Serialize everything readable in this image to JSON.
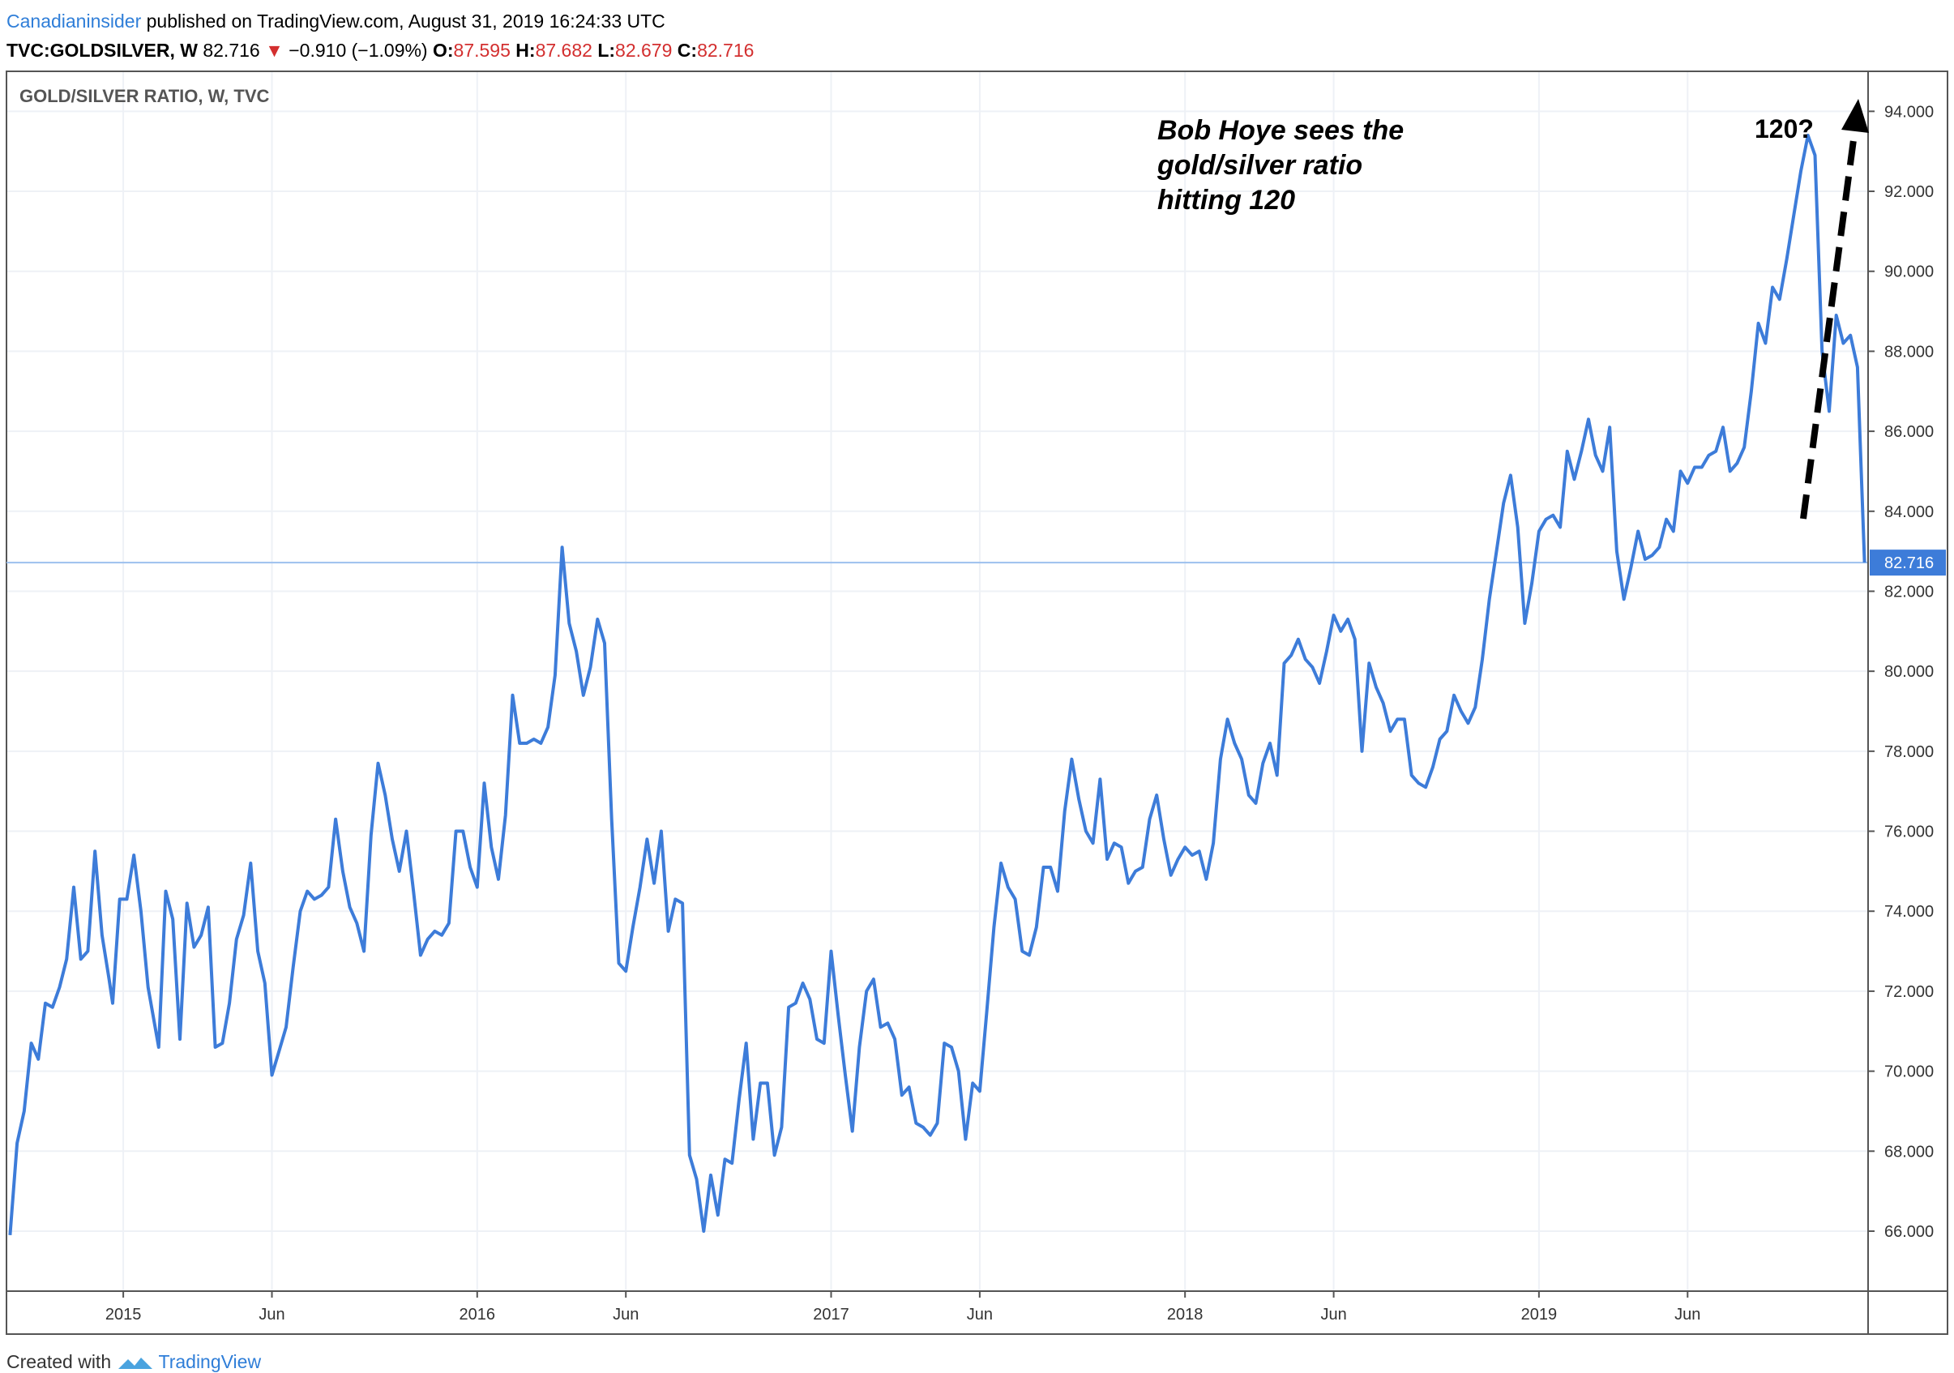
{
  "header": {
    "author": "Canadianinsider",
    "published": " published on TradingView.com, August 31, 2019 16:24:33 UTC",
    "symbol": "TVC:GOLDSILVER, W",
    "last": "82.716",
    "change": "−0.910 (−1.09%)",
    "o_label": "O:",
    "o_val": "87.595",
    "h_label": "H:",
    "h_val": "87.682",
    "l_label": "L:",
    "l_val": "82.679",
    "c_label": "C:",
    "c_val": "82.716",
    "down_arrow": "▼"
  },
  "footer": {
    "created": "Created with ",
    "brand": "TradingView"
  },
  "colors": {
    "line": "#3d7cd9",
    "price_tag": "#3d7cd9",
    "grid": "#eef1f6",
    "arrow": "#000000"
  },
  "chart_data": {
    "type": "line",
    "title": "GOLD/SILVER RATIO, W, TVC",
    "last_price": 82.716,
    "ylim": [
      64.5,
      95.0
    ],
    "yticks": [
      66,
      68,
      70,
      72,
      74,
      76,
      78,
      80,
      82,
      84,
      86,
      88,
      90,
      92,
      94
    ],
    "ytick_labels": [
      "66.000",
      "68.000",
      "70.000",
      "72.000",
      "74.000",
      "76.000",
      "78.000",
      "80.000",
      "82.000",
      "84.000",
      "86.000",
      "88.000",
      "90.000",
      "92.000",
      "94.000"
    ],
    "xticks": [
      {
        "label": "2015",
        "x": 2015.0
      },
      {
        "label": "Jun",
        "x": 2015.42
      },
      {
        "label": "2016",
        "x": 2016.0
      },
      {
        "label": "Jun",
        "x": 2016.42
      },
      {
        "label": "2017",
        "x": 2017.0
      },
      {
        "label": "Jun",
        "x": 2017.42
      },
      {
        "label": "2018",
        "x": 2018.0
      },
      {
        "label": "Jun",
        "x": 2018.42
      },
      {
        "label": "2019",
        "x": 2019.0
      },
      {
        "label": "Jun",
        "x": 2019.42
      }
    ],
    "xlim": [
      2014.67,
      2019.93
    ],
    "series": [
      {
        "values": [
          [
            2014.68,
            65.9
          ],
          [
            2014.7,
            68.2
          ],
          [
            2014.72,
            69.0
          ],
          [
            2014.74,
            70.7
          ],
          [
            2014.76,
            70.3
          ],
          [
            2014.78,
            71.7
          ],
          [
            2014.8,
            71.6
          ],
          [
            2014.82,
            72.1
          ],
          [
            2014.84,
            72.8
          ],
          [
            2014.86,
            74.6
          ],
          [
            2014.88,
            72.8
          ],
          [
            2014.9,
            73.0
          ],
          [
            2014.92,
            75.5
          ],
          [
            2014.94,
            73.4
          ],
          [
            2014.96,
            72.3
          ],
          [
            2014.97,
            71.7
          ],
          [
            2014.99,
            74.3
          ],
          [
            2015.01,
            74.3
          ],
          [
            2015.03,
            75.4
          ],
          [
            2015.05,
            74.0
          ],
          [
            2015.07,
            72.1
          ],
          [
            2015.1,
            70.6
          ],
          [
            2015.12,
            74.5
          ],
          [
            2015.14,
            73.8
          ],
          [
            2015.16,
            70.8
          ],
          [
            2015.18,
            74.2
          ],
          [
            2015.2,
            73.1
          ],
          [
            2015.22,
            73.4
          ],
          [
            2015.24,
            74.1
          ],
          [
            2015.26,
            70.6
          ],
          [
            2015.28,
            70.7
          ],
          [
            2015.3,
            71.7
          ],
          [
            2015.32,
            73.3
          ],
          [
            2015.34,
            73.9
          ],
          [
            2015.36,
            75.2
          ],
          [
            2015.38,
            73.0
          ],
          [
            2015.4,
            72.2
          ],
          [
            2015.42,
            69.9
          ],
          [
            2015.44,
            70.5
          ],
          [
            2015.46,
            71.1
          ],
          [
            2015.48,
            72.6
          ],
          [
            2015.5,
            74.0
          ],
          [
            2015.52,
            74.5
          ],
          [
            2015.54,
            74.3
          ],
          [
            2015.56,
            74.4
          ],
          [
            2015.58,
            74.6
          ],
          [
            2015.6,
            76.3
          ],
          [
            2015.62,
            75.0
          ],
          [
            2015.64,
            74.1
          ],
          [
            2015.66,
            73.7
          ],
          [
            2015.68,
            73.0
          ],
          [
            2015.7,
            75.9
          ],
          [
            2015.72,
            77.7
          ],
          [
            2015.74,
            76.9
          ],
          [
            2015.76,
            75.8
          ],
          [
            2015.78,
            75.0
          ],
          [
            2015.8,
            76.0
          ],
          [
            2015.82,
            74.5
          ],
          [
            2015.84,
            72.9
          ],
          [
            2015.86,
            73.3
          ],
          [
            2015.88,
            73.5
          ],
          [
            2015.9,
            73.4
          ],
          [
            2015.92,
            73.7
          ],
          [
            2015.94,
            76.0
          ],
          [
            2015.96,
            76.0
          ],
          [
            2015.98,
            75.1
          ],
          [
            2016.0,
            74.6
          ],
          [
            2016.02,
            77.2
          ],
          [
            2016.04,
            75.6
          ],
          [
            2016.06,
            74.8
          ],
          [
            2016.08,
            76.4
          ],
          [
            2016.1,
            79.4
          ],
          [
            2016.12,
            78.2
          ],
          [
            2016.14,
            78.2
          ],
          [
            2016.16,
            78.3
          ],
          [
            2016.18,
            78.2
          ],
          [
            2016.2,
            78.6
          ],
          [
            2016.22,
            79.9
          ],
          [
            2016.24,
            83.1
          ],
          [
            2016.26,
            81.2
          ],
          [
            2016.28,
            80.5
          ],
          [
            2016.3,
            79.4
          ],
          [
            2016.32,
            80.1
          ],
          [
            2016.34,
            81.3
          ],
          [
            2016.36,
            80.7
          ],
          [
            2016.38,
            76.3
          ],
          [
            2016.4,
            72.7
          ],
          [
            2016.42,
            72.5
          ],
          [
            2016.44,
            73.6
          ],
          [
            2016.46,
            74.6
          ],
          [
            2016.48,
            75.8
          ],
          [
            2016.5,
            74.7
          ],
          [
            2016.52,
            76.0
          ],
          [
            2016.54,
            73.5
          ],
          [
            2016.56,
            74.3
          ],
          [
            2016.58,
            74.2
          ],
          [
            2016.6,
            67.9
          ],
          [
            2016.62,
            67.3
          ],
          [
            2016.64,
            66.0
          ],
          [
            2016.66,
            67.4
          ],
          [
            2016.68,
            66.4
          ],
          [
            2016.7,
            67.8
          ],
          [
            2016.72,
            67.7
          ],
          [
            2016.74,
            69.3
          ],
          [
            2016.76,
            70.7
          ],
          [
            2016.78,
            68.3
          ],
          [
            2016.8,
            69.7
          ],
          [
            2016.82,
            69.7
          ],
          [
            2016.84,
            67.9
          ],
          [
            2016.86,
            68.6
          ],
          [
            2016.88,
            71.6
          ],
          [
            2016.9,
            71.7
          ],
          [
            2016.92,
            72.2
          ],
          [
            2016.94,
            71.8
          ],
          [
            2016.96,
            70.8
          ],
          [
            2016.98,
            70.7
          ],
          [
            2017.0,
            73.0
          ],
          [
            2017.02,
            71.4
          ],
          [
            2017.04,
            69.9
          ],
          [
            2017.06,
            68.5
          ],
          [
            2017.08,
            70.6
          ],
          [
            2017.1,
            72.0
          ],
          [
            2017.12,
            72.3
          ],
          [
            2017.14,
            71.1
          ],
          [
            2017.16,
            71.2
          ],
          [
            2017.18,
            70.8
          ],
          [
            2017.2,
            69.4
          ],
          [
            2017.22,
            69.6
          ],
          [
            2017.24,
            68.7
          ],
          [
            2017.26,
            68.6
          ],
          [
            2017.28,
            68.4
          ],
          [
            2017.3,
            68.7
          ],
          [
            2017.32,
            70.7
          ],
          [
            2017.34,
            70.6
          ],
          [
            2017.36,
            70.0
          ],
          [
            2017.38,
            68.3
          ],
          [
            2017.4,
            69.7
          ],
          [
            2017.42,
            69.5
          ],
          [
            2017.44,
            71.5
          ],
          [
            2017.46,
            73.6
          ],
          [
            2017.48,
            75.2
          ],
          [
            2017.5,
            74.6
          ],
          [
            2017.52,
            74.3
          ],
          [
            2017.54,
            73.0
          ],
          [
            2017.56,
            72.9
          ],
          [
            2017.58,
            73.6
          ],
          [
            2017.6,
            75.1
          ],
          [
            2017.62,
            75.1
          ],
          [
            2017.64,
            74.5
          ],
          [
            2017.66,
            76.5
          ],
          [
            2017.68,
            77.8
          ],
          [
            2017.7,
            76.8
          ],
          [
            2017.72,
            76.0
          ],
          [
            2017.74,
            75.7
          ],
          [
            2017.76,
            77.3
          ],
          [
            2017.78,
            75.3
          ],
          [
            2017.8,
            75.7
          ],
          [
            2017.82,
            75.6
          ],
          [
            2017.84,
            74.7
          ],
          [
            2017.86,
            75.0
          ],
          [
            2017.88,
            75.1
          ],
          [
            2017.9,
            76.3
          ],
          [
            2017.92,
            76.9
          ],
          [
            2017.94,
            75.8
          ],
          [
            2017.96,
            74.9
          ],
          [
            2017.98,
            75.3
          ],
          [
            2018.0,
            75.6
          ],
          [
            2018.02,
            75.4
          ],
          [
            2018.04,
            75.5
          ],
          [
            2018.06,
            74.8
          ],
          [
            2018.08,
            75.7
          ],
          [
            2018.1,
            77.8
          ],
          [
            2018.12,
            78.8
          ],
          [
            2018.14,
            78.2
          ],
          [
            2018.16,
            77.8
          ],
          [
            2018.18,
            76.9
          ],
          [
            2018.2,
            76.7
          ],
          [
            2018.22,
            77.7
          ],
          [
            2018.24,
            78.2
          ],
          [
            2018.26,
            77.4
          ],
          [
            2018.28,
            80.2
          ],
          [
            2018.3,
            80.4
          ],
          [
            2018.32,
            80.8
          ],
          [
            2018.34,
            80.3
          ],
          [
            2018.36,
            80.1
          ],
          [
            2018.38,
            79.7
          ],
          [
            2018.4,
            80.5
          ],
          [
            2018.42,
            81.4
          ],
          [
            2018.44,
            81.0
          ],
          [
            2018.46,
            81.3
          ],
          [
            2018.48,
            80.8
          ],
          [
            2018.5,
            78.0
          ],
          [
            2018.52,
            80.2
          ],
          [
            2018.54,
            79.6
          ],
          [
            2018.56,
            79.2
          ],
          [
            2018.58,
            78.5
          ],
          [
            2018.6,
            78.8
          ],
          [
            2018.62,
            78.8
          ],
          [
            2018.64,
            77.4
          ],
          [
            2018.66,
            77.2
          ],
          [
            2018.68,
            77.1
          ],
          [
            2018.7,
            77.6
          ],
          [
            2018.72,
            78.3
          ],
          [
            2018.74,
            78.5
          ],
          [
            2018.76,
            79.4
          ],
          [
            2018.78,
            79.0
          ],
          [
            2018.8,
            78.7
          ],
          [
            2018.82,
            79.1
          ],
          [
            2018.84,
            80.3
          ],
          [
            2018.86,
            81.8
          ],
          [
            2018.88,
            83.0
          ],
          [
            2018.9,
            84.2
          ],
          [
            2018.92,
            84.9
          ],
          [
            2018.94,
            83.6
          ],
          [
            2018.96,
            81.2
          ],
          [
            2018.98,
            82.2
          ],
          [
            2019.0,
            83.5
          ],
          [
            2019.02,
            83.8
          ],
          [
            2019.04,
            83.9
          ],
          [
            2019.06,
            83.6
          ],
          [
            2019.08,
            85.5
          ],
          [
            2019.1,
            84.8
          ],
          [
            2019.12,
            85.5
          ],
          [
            2019.14,
            86.3
          ],
          [
            2019.16,
            85.4
          ],
          [
            2019.18,
            85.0
          ],
          [
            2019.2,
            86.1
          ],
          [
            2019.22,
            83.0
          ],
          [
            2019.24,
            81.8
          ],
          [
            2019.26,
            82.6
          ],
          [
            2019.28,
            83.5
          ],
          [
            2019.3,
            82.8
          ],
          [
            2019.32,
            82.9
          ],
          [
            2019.34,
            83.1
          ],
          [
            2019.36,
            83.8
          ],
          [
            2019.38,
            83.5
          ],
          [
            2019.4,
            85.0
          ],
          [
            2019.42,
            84.7
          ],
          [
            2019.44,
            85.1
          ],
          [
            2019.46,
            85.1
          ],
          [
            2019.48,
            85.4
          ],
          [
            2019.5,
            85.5
          ],
          [
            2019.52,
            86.1
          ],
          [
            2019.54,
            85.0
          ],
          [
            2019.56,
            85.2
          ],
          [
            2019.58,
            85.6
          ],
          [
            2019.6,
            87.0
          ],
          [
            2019.62,
            88.7
          ],
          [
            2019.64,
            88.2
          ],
          [
            2019.66,
            89.6
          ],
          [
            2019.68,
            89.3
          ],
          [
            2019.7,
            90.3
          ],
          [
            2019.72,
            91.4
          ],
          [
            2019.74,
            92.5
          ],
          [
            2019.76,
            93.4
          ],
          [
            2019.78,
            92.9
          ],
          [
            2019.8,
            88.0
          ],
          [
            2019.82,
            86.5
          ],
          [
            2019.84,
            88.9
          ],
          [
            2019.86,
            88.2
          ],
          [
            2019.88,
            88.4
          ],
          [
            2019.9,
            87.6
          ],
          [
            2019.92,
            82.716
          ]
        ]
      }
    ],
    "annotations": {
      "main_text": [
        "Bob Hoye sees the",
        "gold/silver ratio",
        "hitting 120"
      ],
      "target_label": "120?"
    },
    "grid": true
  }
}
